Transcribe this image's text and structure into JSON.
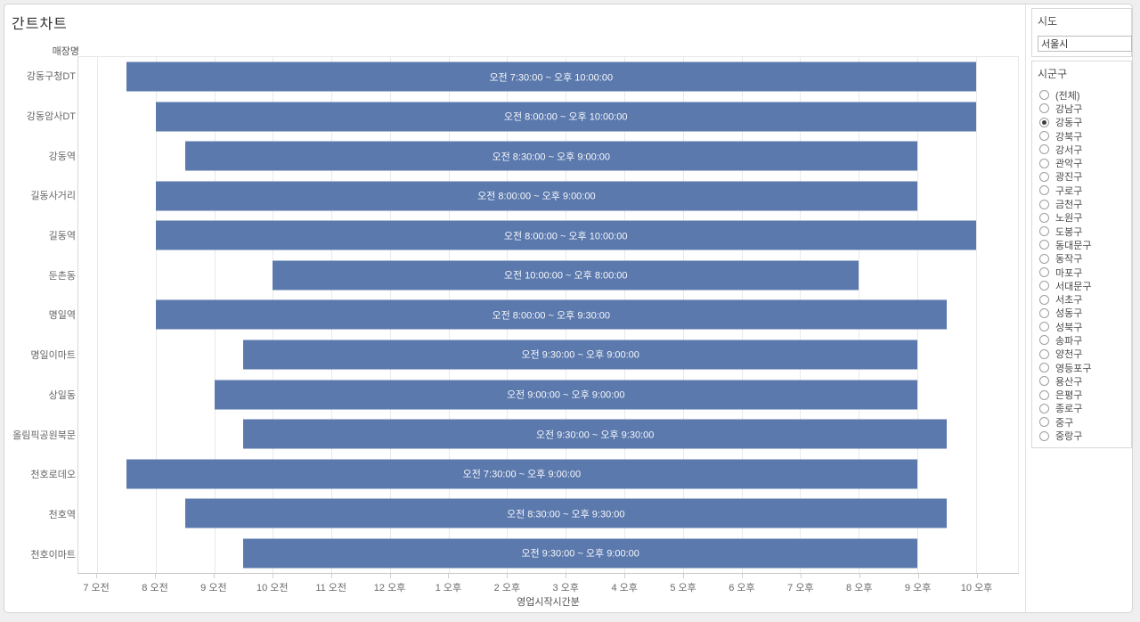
{
  "title": "간트차트",
  "colors": {
    "bar": "#5b79ad",
    "bar_label": "#ffffff"
  },
  "chart_data": {
    "type": "bar",
    "subtype": "gantt",
    "title": "간트차트",
    "row_header": "매장명",
    "xlabel": "영업시작시간분",
    "axis": {
      "min_hour": 6.68,
      "max_hour": 22.72,
      "grid": true
    },
    "rows": [
      {
        "name": "강동구청DT",
        "label": "오전 7:30:00 ~ 오후 10:00:00",
        "start_hour": 7.5,
        "end_hour": 22
      },
      {
        "name": "강동암사DT",
        "label": "오전 8:00:00 ~ 오후 10:00:00",
        "start_hour": 8,
        "end_hour": 22
      },
      {
        "name": "강동역",
        "label": "오전 8:30:00 ~ 오후 9:00:00",
        "start_hour": 8.5,
        "end_hour": 21
      },
      {
        "name": "길동사거리",
        "label": "오전 8:00:00 ~ 오후 9:00:00",
        "start_hour": 8,
        "end_hour": 21
      },
      {
        "name": "길동역",
        "label": "오전 8:00:00 ~ 오후 10:00:00",
        "start_hour": 8,
        "end_hour": 22
      },
      {
        "name": "둔촌동",
        "label": "오전 10:00:00 ~ 오후 8:00:00",
        "start_hour": 10,
        "end_hour": 20
      },
      {
        "name": "명일역",
        "label": "오전 8:00:00 ~ 오후 9:30:00",
        "start_hour": 8,
        "end_hour": 21.5
      },
      {
        "name": "명일이마트",
        "label": "오전 9:30:00 ~ 오후 9:00:00",
        "start_hour": 9.5,
        "end_hour": 21
      },
      {
        "name": "상일동",
        "label": "오전 9:00:00 ~ 오후 9:00:00",
        "start_hour": 9,
        "end_hour": 21
      },
      {
        "name": "올림픽공원북문",
        "label": "오전 9:30:00 ~ 오후 9:30:00",
        "start_hour": 9.5,
        "end_hour": 21.5
      },
      {
        "name": "천호로데오",
        "label": "오전 7:30:00 ~ 오후 9:00:00",
        "start_hour": 7.5,
        "end_hour": 21
      },
      {
        "name": "천호역",
        "label": "오전 8:30:00 ~ 오후 9:30:00",
        "start_hour": 8.5,
        "end_hour": 21.5
      },
      {
        "name": "천호이마트",
        "label": "오전 9:30:00 ~ 오후 9:00:00",
        "start_hour": 9.5,
        "end_hour": 21
      }
    ],
    "x_ticks": [
      {
        "hour": 7,
        "label": "7 오전"
      },
      {
        "hour": 8,
        "label": "8 오전"
      },
      {
        "hour": 9,
        "label": "9 오전"
      },
      {
        "hour": 10,
        "label": "10 오전"
      },
      {
        "hour": 11,
        "label": "11 오전"
      },
      {
        "hour": 12,
        "label": "12 오후"
      },
      {
        "hour": 13,
        "label": "1 오후"
      },
      {
        "hour": 14,
        "label": "2 오후"
      },
      {
        "hour": 15,
        "label": "3 오후"
      },
      {
        "hour": 16,
        "label": "4 오후"
      },
      {
        "hour": 17,
        "label": "5 오후"
      },
      {
        "hour": 18,
        "label": "6 오후"
      },
      {
        "hour": 19,
        "label": "7 오후"
      },
      {
        "hour": 20,
        "label": "8 오후"
      },
      {
        "hour": 21,
        "label": "9 오후"
      },
      {
        "hour": 22,
        "label": "10 오후"
      }
    ]
  },
  "filters": {
    "sido": {
      "title": "시도",
      "value": "서울시"
    },
    "sigungu": {
      "title": "시군구",
      "selected": "강동구",
      "options": [
        "(전체)",
        "강남구",
        "강동구",
        "강북구",
        "강서구",
        "관악구",
        "광진구",
        "구로구",
        "금천구",
        "노원구",
        "도봉구",
        "동대문구",
        "동작구",
        "마포구",
        "서대문구",
        "서초구",
        "성동구",
        "성북구",
        "송파구",
        "양천구",
        "영등포구",
        "용산구",
        "은평구",
        "종로구",
        "중구",
        "중랑구"
      ]
    }
  }
}
